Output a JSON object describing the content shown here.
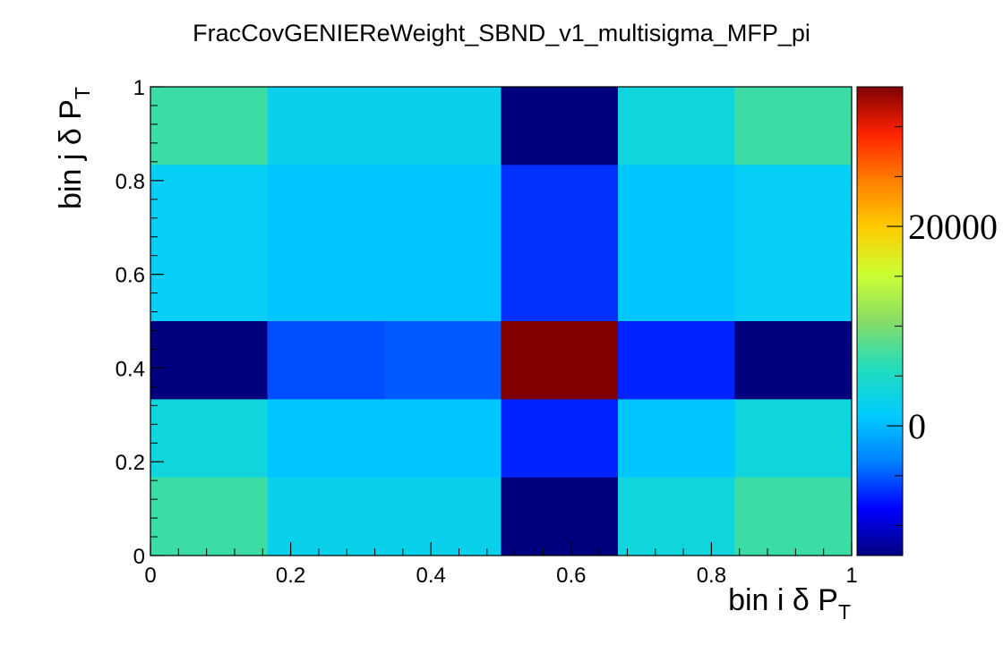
{
  "chart_data": {
    "type": "heatmap",
    "title": "FracCovGENIEReWeight_SBND_v1_multisigma_MFP_pi",
    "xlabel": {
      "main": "bin i δ P",
      "sub": "T"
    },
    "ylabel": {
      "main": "bin j δ P",
      "sub": "T"
    },
    "x_edges": [
      0,
      0.1667,
      0.3333,
      0.5,
      0.6667,
      0.8333,
      1
    ],
    "y_edges": [
      0,
      0.1667,
      0.3333,
      0.5,
      0.6667,
      0.8333,
      1
    ],
    "xlim": [
      0,
      1
    ],
    "ylim": [
      0,
      1
    ],
    "x_ticks": [
      0,
      0.2,
      0.4,
      0.6,
      0.8,
      1
    ],
    "x_tick_labels": [
      "0",
      "0.2",
      "0.4",
      "0.6",
      "0.8",
      "1"
    ],
    "y_ticks": [
      0,
      0.2,
      0.4,
      0.6,
      0.8,
      1
    ],
    "y_tick_labels": [
      "0",
      "0.2",
      "0.4",
      "0.6",
      "0.8",
      "1"
    ],
    "z": [
      [
        7000,
        2500,
        2500,
        -13000,
        3500,
        7000
      ],
      [
        1800,
        700,
        700,
        -6500,
        700,
        1800
      ],
      [
        1800,
        700,
        700,
        -6500,
        700,
        1800
      ],
      [
        -13000,
        -5500,
        -5000,
        34000,
        -7000,
        -13000
      ],
      [
        3500,
        700,
        700,
        -7000,
        700,
        3500
      ],
      [
        7000,
        2500,
        2500,
        -13000,
        3500,
        7000
      ]
    ],
    "zlim": [
      -13000,
      34000
    ],
    "palette_ticks": [
      0,
      20000
    ],
    "palette_tick_labels": [
      "0",
      "20000"
    ],
    "colormap": [
      "#00007f",
      "#0000ff",
      "#0080ff",
      "#00ccff",
      "#22ddbb",
      "#88dd66",
      "#ccff33",
      "#ffcc00",
      "#ff7f00",
      "#ff2200",
      "#800000"
    ],
    "grid": false,
    "legend": "palette-right"
  }
}
